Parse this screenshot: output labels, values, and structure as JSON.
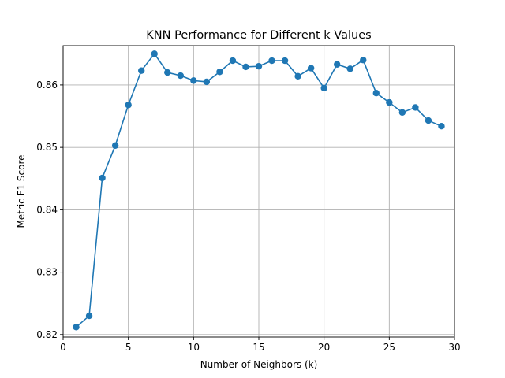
{
  "chart_data": {
    "type": "line",
    "title": "KNN Performance for Different k Values",
    "xlabel": "Number of Neighbors (k)",
    "ylabel": "Metric F1 Score",
    "xlim": [
      0,
      30
    ],
    "ylim": [
      0.8196,
      0.8663
    ],
    "xticks": [
      0,
      5,
      10,
      15,
      20,
      25,
      30
    ],
    "yticks": [
      0.82,
      0.83,
      0.84,
      0.85,
      0.86
    ],
    "xtick_labels": [
      "0",
      "5",
      "10",
      "15",
      "20",
      "25",
      "30"
    ],
    "ytick_labels": [
      "0.82",
      "0.83",
      "0.84",
      "0.85",
      "0.86"
    ],
    "grid": true,
    "marker": "circle",
    "series": [
      {
        "color": "#1f77b4",
        "x": [
          1,
          2,
          3,
          4,
          5,
          6,
          7,
          8,
          9,
          10,
          11,
          12,
          13,
          14,
          15,
          16,
          17,
          18,
          19,
          20,
          21,
          22,
          23,
          24,
          25,
          26,
          27,
          28,
          29
        ],
        "y": [
          0.8212,
          0.823,
          0.8451,
          0.8503,
          0.8568,
          0.8623,
          0.865,
          0.862,
          0.8615,
          0.8607,
          0.8605,
          0.8621,
          0.8639,
          0.8629,
          0.863,
          0.8639,
          0.8639,
          0.8614,
          0.8627,
          0.8595,
          0.8633,
          0.8626,
          0.864,
          0.8587,
          0.8572,
          0.8556,
          0.8564,
          0.8543,
          0.8534
        ]
      }
    ]
  }
}
